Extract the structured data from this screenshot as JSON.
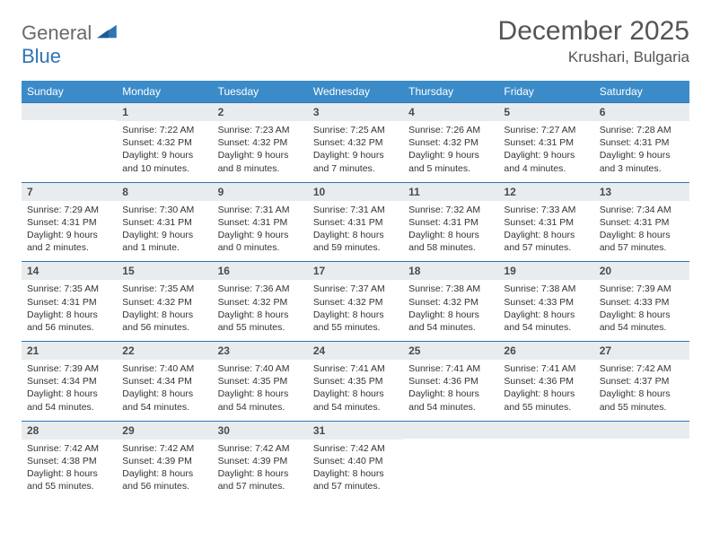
{
  "logo": {
    "word1": "General",
    "word2": "Blue"
  },
  "header": {
    "month_title": "December 2025",
    "location": "Krushari, Bulgaria"
  },
  "colors": {
    "header_bg": "#3b8bc9",
    "header_text": "#ffffff",
    "daynum_bg": "#e9ecef",
    "daynum_border": "#2f74b5",
    "body_text": "#333333",
    "title_text": "#555555"
  },
  "dow": [
    "Sunday",
    "Monday",
    "Tuesday",
    "Wednesday",
    "Thursday",
    "Friday",
    "Saturday"
  ],
  "weeks": [
    [
      {
        "num": "",
        "sunrise": "",
        "sunset": "",
        "daylight": ""
      },
      {
        "num": "1",
        "sunrise": "Sunrise: 7:22 AM",
        "sunset": "Sunset: 4:32 PM",
        "daylight": "Daylight: 9 hours and 10 minutes."
      },
      {
        "num": "2",
        "sunrise": "Sunrise: 7:23 AM",
        "sunset": "Sunset: 4:32 PM",
        "daylight": "Daylight: 9 hours and 8 minutes."
      },
      {
        "num": "3",
        "sunrise": "Sunrise: 7:25 AM",
        "sunset": "Sunset: 4:32 PM",
        "daylight": "Daylight: 9 hours and 7 minutes."
      },
      {
        "num": "4",
        "sunrise": "Sunrise: 7:26 AM",
        "sunset": "Sunset: 4:32 PM",
        "daylight": "Daylight: 9 hours and 5 minutes."
      },
      {
        "num": "5",
        "sunrise": "Sunrise: 7:27 AM",
        "sunset": "Sunset: 4:31 PM",
        "daylight": "Daylight: 9 hours and 4 minutes."
      },
      {
        "num": "6",
        "sunrise": "Sunrise: 7:28 AM",
        "sunset": "Sunset: 4:31 PM",
        "daylight": "Daylight: 9 hours and 3 minutes."
      }
    ],
    [
      {
        "num": "7",
        "sunrise": "Sunrise: 7:29 AM",
        "sunset": "Sunset: 4:31 PM",
        "daylight": "Daylight: 9 hours and 2 minutes."
      },
      {
        "num": "8",
        "sunrise": "Sunrise: 7:30 AM",
        "sunset": "Sunset: 4:31 PM",
        "daylight": "Daylight: 9 hours and 1 minute."
      },
      {
        "num": "9",
        "sunrise": "Sunrise: 7:31 AM",
        "sunset": "Sunset: 4:31 PM",
        "daylight": "Daylight: 9 hours and 0 minutes."
      },
      {
        "num": "10",
        "sunrise": "Sunrise: 7:31 AM",
        "sunset": "Sunset: 4:31 PM",
        "daylight": "Daylight: 8 hours and 59 minutes."
      },
      {
        "num": "11",
        "sunrise": "Sunrise: 7:32 AM",
        "sunset": "Sunset: 4:31 PM",
        "daylight": "Daylight: 8 hours and 58 minutes."
      },
      {
        "num": "12",
        "sunrise": "Sunrise: 7:33 AM",
        "sunset": "Sunset: 4:31 PM",
        "daylight": "Daylight: 8 hours and 57 minutes."
      },
      {
        "num": "13",
        "sunrise": "Sunrise: 7:34 AM",
        "sunset": "Sunset: 4:31 PM",
        "daylight": "Daylight: 8 hours and 57 minutes."
      }
    ],
    [
      {
        "num": "14",
        "sunrise": "Sunrise: 7:35 AM",
        "sunset": "Sunset: 4:31 PM",
        "daylight": "Daylight: 8 hours and 56 minutes."
      },
      {
        "num": "15",
        "sunrise": "Sunrise: 7:35 AM",
        "sunset": "Sunset: 4:32 PM",
        "daylight": "Daylight: 8 hours and 56 minutes."
      },
      {
        "num": "16",
        "sunrise": "Sunrise: 7:36 AM",
        "sunset": "Sunset: 4:32 PM",
        "daylight": "Daylight: 8 hours and 55 minutes."
      },
      {
        "num": "17",
        "sunrise": "Sunrise: 7:37 AM",
        "sunset": "Sunset: 4:32 PM",
        "daylight": "Daylight: 8 hours and 55 minutes."
      },
      {
        "num": "18",
        "sunrise": "Sunrise: 7:38 AM",
        "sunset": "Sunset: 4:32 PM",
        "daylight": "Daylight: 8 hours and 54 minutes."
      },
      {
        "num": "19",
        "sunrise": "Sunrise: 7:38 AM",
        "sunset": "Sunset: 4:33 PM",
        "daylight": "Daylight: 8 hours and 54 minutes."
      },
      {
        "num": "20",
        "sunrise": "Sunrise: 7:39 AM",
        "sunset": "Sunset: 4:33 PM",
        "daylight": "Daylight: 8 hours and 54 minutes."
      }
    ],
    [
      {
        "num": "21",
        "sunrise": "Sunrise: 7:39 AM",
        "sunset": "Sunset: 4:34 PM",
        "daylight": "Daylight: 8 hours and 54 minutes."
      },
      {
        "num": "22",
        "sunrise": "Sunrise: 7:40 AM",
        "sunset": "Sunset: 4:34 PM",
        "daylight": "Daylight: 8 hours and 54 minutes."
      },
      {
        "num": "23",
        "sunrise": "Sunrise: 7:40 AM",
        "sunset": "Sunset: 4:35 PM",
        "daylight": "Daylight: 8 hours and 54 minutes."
      },
      {
        "num": "24",
        "sunrise": "Sunrise: 7:41 AM",
        "sunset": "Sunset: 4:35 PM",
        "daylight": "Daylight: 8 hours and 54 minutes."
      },
      {
        "num": "25",
        "sunrise": "Sunrise: 7:41 AM",
        "sunset": "Sunset: 4:36 PM",
        "daylight": "Daylight: 8 hours and 54 minutes."
      },
      {
        "num": "26",
        "sunrise": "Sunrise: 7:41 AM",
        "sunset": "Sunset: 4:36 PM",
        "daylight": "Daylight: 8 hours and 55 minutes."
      },
      {
        "num": "27",
        "sunrise": "Sunrise: 7:42 AM",
        "sunset": "Sunset: 4:37 PM",
        "daylight": "Daylight: 8 hours and 55 minutes."
      }
    ],
    [
      {
        "num": "28",
        "sunrise": "Sunrise: 7:42 AM",
        "sunset": "Sunset: 4:38 PM",
        "daylight": "Daylight: 8 hours and 55 minutes."
      },
      {
        "num": "29",
        "sunrise": "Sunrise: 7:42 AM",
        "sunset": "Sunset: 4:39 PM",
        "daylight": "Daylight: 8 hours and 56 minutes."
      },
      {
        "num": "30",
        "sunrise": "Sunrise: 7:42 AM",
        "sunset": "Sunset: 4:39 PM",
        "daylight": "Daylight: 8 hours and 57 minutes."
      },
      {
        "num": "31",
        "sunrise": "Sunrise: 7:42 AM",
        "sunset": "Sunset: 4:40 PM",
        "daylight": "Daylight: 8 hours and 57 minutes."
      },
      {
        "num": "",
        "sunrise": "",
        "sunset": "",
        "daylight": ""
      },
      {
        "num": "",
        "sunrise": "",
        "sunset": "",
        "daylight": ""
      },
      {
        "num": "",
        "sunrise": "",
        "sunset": "",
        "daylight": ""
      }
    ]
  ]
}
